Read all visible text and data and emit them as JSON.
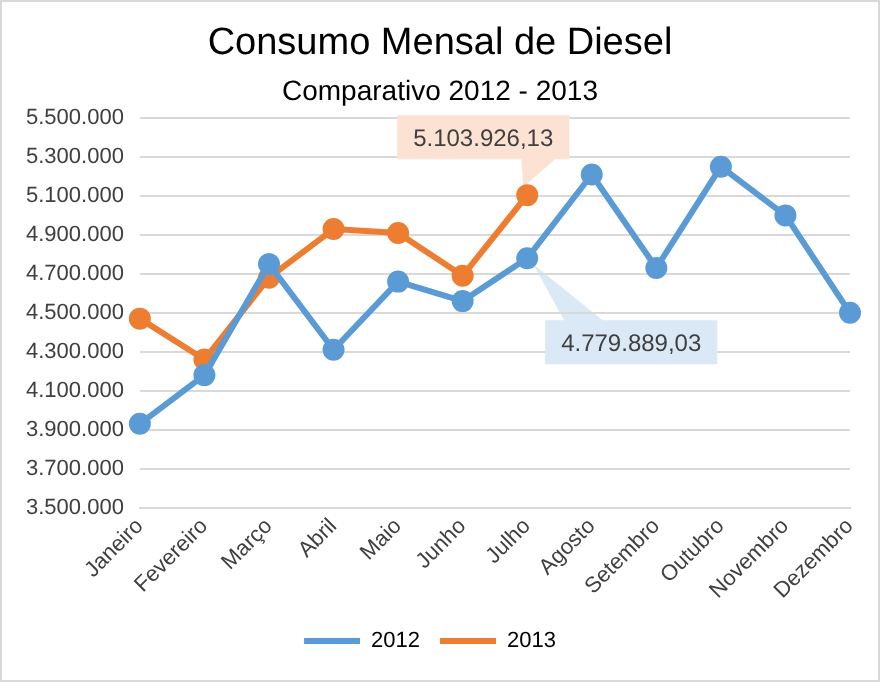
{
  "chart_data": {
    "type": "line",
    "title": "Consumo Mensal de Diesel",
    "subtitle": "Comparativo 2012 - 2013",
    "categories": [
      "Janeiro",
      "Fevereiro",
      "Março",
      "Abril",
      "Maio",
      "Junho",
      "Julho",
      "Agosto",
      "Setembro",
      "Outubro",
      "Novembro",
      "Dezembro"
    ],
    "series": [
      {
        "name": "2012",
        "color": "#5b9bd5",
        "values": [
          3930000,
          4180000,
          4750000,
          4310000,
          4660000,
          4560000,
          4779889.03,
          5210000,
          4730000,
          5250000,
          5000000,
          4500000
        ],
        "value_labels": [
          null,
          null,
          null,
          null,
          null,
          null,
          "4.779.889,03",
          null,
          null,
          null,
          null,
          null
        ]
      },
      {
        "name": "2013",
        "color": "#ed7d31",
        "values": [
          4470000,
          4260000,
          4680000,
          4930000,
          4910000,
          4690000,
          5103926.13,
          null,
          null,
          null,
          null,
          null
        ],
        "value_labels": [
          null,
          null,
          null,
          null,
          null,
          null,
          "5.103.926,13",
          null,
          null,
          null,
          null,
          null
        ]
      }
    ],
    "ylim": [
      3500000,
      5500000
    ],
    "yticks": [
      {
        "value": 3500000,
        "label": "3.500.000"
      },
      {
        "value": 3700000,
        "label": "3.700.000"
      },
      {
        "value": 3900000,
        "label": "3.900.000"
      },
      {
        "value": 4100000,
        "label": "4.100.000"
      },
      {
        "value": 4300000,
        "label": "4.300.000"
      },
      {
        "value": 4500000,
        "label": "4.500.000"
      },
      {
        "value": 4700000,
        "label": "4.700.000"
      },
      {
        "value": 4900000,
        "label": "4.900.000"
      },
      {
        "value": 5100000,
        "label": "5.100.000"
      },
      {
        "value": 5300000,
        "label": "5.300.000"
      },
      {
        "value": 5500000,
        "label": "5.500.000"
      }
    ],
    "grid": "y",
    "legend": "bottom",
    "marker": "circle",
    "line_style": "solid"
  }
}
